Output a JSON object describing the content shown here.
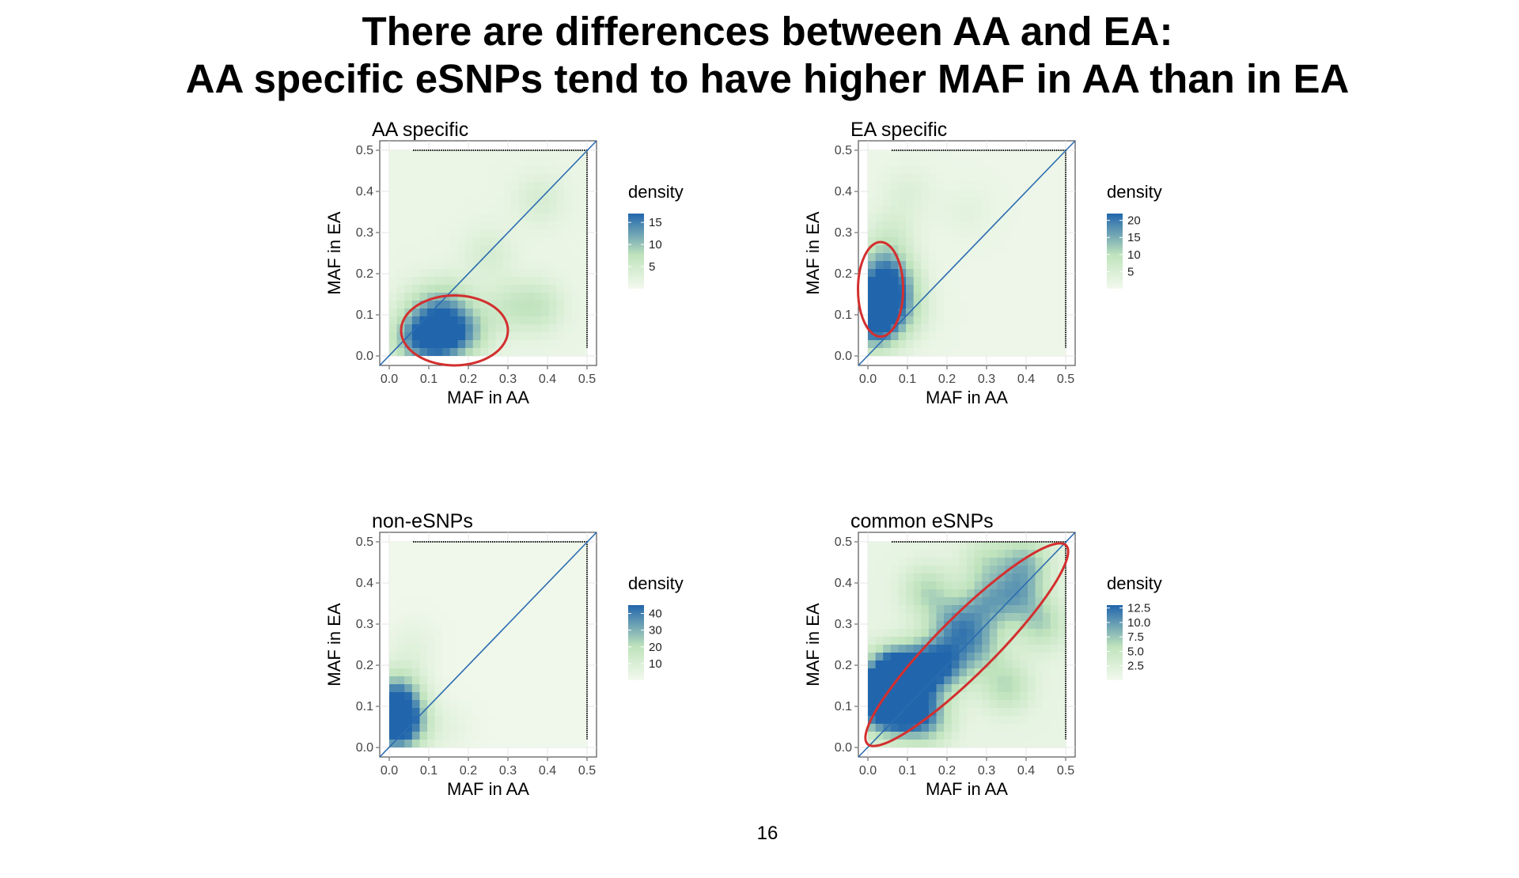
{
  "slide": {
    "title_line1": "There are differences between AA and EA:",
    "title_line2": "AA specific eSNPs tend to have higher MAF in AA than in EA",
    "page_number": "16"
  },
  "colors": {
    "low": "#f3f9ee",
    "mid": "#bfe3bc",
    "high": "#2166ac",
    "diagonal": "#2b6cb0",
    "ellipse": "#d32f2f",
    "panel_background": "#ffffff"
  },
  "chart_data": [
    {
      "type": "heatmap",
      "title": "AA specific",
      "xlabel": "MAF in AA",
      "ylabel": "MAF in EA",
      "xlim": [
        0,
        0.5
      ],
      "ylim": [
        0,
        0.5
      ],
      "x_ticks": [
        "0.0",
        "0.1",
        "0.2",
        "0.3",
        "0.4",
        "0.5"
      ],
      "y_ticks": [
        "0.0",
        "0.1",
        "0.2",
        "0.3",
        "0.4",
        "0.5"
      ],
      "grid": true,
      "legend": {
        "title": "density",
        "position": "right",
        "min": 0,
        "max": 17,
        "ticks": [
          15,
          10,
          5
        ]
      },
      "reference_line": "y = x",
      "hotspots": [
        {
          "x": 0.13,
          "y": 0.05,
          "weight": 17
        },
        {
          "x": 0.06,
          "y": 0.04,
          "weight": 9
        },
        {
          "x": 0.2,
          "y": 0.06,
          "weight": 7
        },
        {
          "x": 0.15,
          "y": 0.13,
          "weight": 6
        },
        {
          "x": 0.08,
          "y": 0.12,
          "weight": 4
        },
        {
          "x": 0.3,
          "y": 0.12,
          "weight": 4
        },
        {
          "x": 0.38,
          "y": 0.12,
          "weight": 5
        },
        {
          "x": 0.25,
          "y": 0.25,
          "weight": 3
        },
        {
          "x": 0.38,
          "y": 0.38,
          "weight": 3
        }
      ],
      "annotation": {
        "shape": "ellipse",
        "cx": 0.165,
        "cy": 0.062,
        "rx": 0.135,
        "ry": 0.085,
        "angle": 0
      }
    },
    {
      "type": "heatmap",
      "title": "EA specific",
      "xlabel": "MAF in AA",
      "ylabel": "MAF in EA",
      "xlim": [
        0,
        0.5
      ],
      "ylim": [
        0,
        0.5
      ],
      "x_ticks": [
        "0.0",
        "0.1",
        "0.2",
        "0.3",
        "0.4",
        "0.5"
      ],
      "y_ticks": [
        "0.0",
        "0.1",
        "0.2",
        "0.3",
        "0.4",
        "0.5"
      ],
      "grid": true,
      "legend": {
        "title": "density",
        "position": "right",
        "min": 0,
        "max": 22,
        "ticks": [
          20,
          15,
          10,
          5
        ]
      },
      "reference_line": "y = x",
      "hotspots": [
        {
          "x": 0.02,
          "y": 0.08,
          "weight": 22
        },
        {
          "x": 0.03,
          "y": 0.15,
          "weight": 18
        },
        {
          "x": 0.04,
          "y": 0.22,
          "weight": 10
        },
        {
          "x": 0.08,
          "y": 0.17,
          "weight": 7
        },
        {
          "x": 0.1,
          "y": 0.1,
          "weight": 5
        },
        {
          "x": 0.06,
          "y": 0.3,
          "weight": 4
        },
        {
          "x": 0.1,
          "y": 0.4,
          "weight": 3
        },
        {
          "x": 0.25,
          "y": 0.35,
          "weight": 2
        }
      ],
      "annotation": {
        "shape": "ellipse",
        "cx": 0.032,
        "cy": 0.162,
        "rx": 0.057,
        "ry": 0.115,
        "angle": 0
      }
    },
    {
      "type": "heatmap",
      "title": "non-eSNPs",
      "xlabel": "MAF in AA",
      "ylabel": "MAF in EA",
      "xlim": [
        0,
        0.5
      ],
      "ylim": [
        0,
        0.5
      ],
      "x_ticks": [
        "0.0",
        "0.1",
        "0.2",
        "0.3",
        "0.4",
        "0.5"
      ],
      "y_ticks": [
        "0.0",
        "0.1",
        "0.2",
        "0.3",
        "0.4",
        "0.5"
      ],
      "grid": true,
      "legend": {
        "title": "density",
        "position": "right",
        "min": 0,
        "max": 45,
        "ticks": [
          40,
          30,
          20,
          10
        ]
      },
      "reference_line": "y = x",
      "hotspots": [
        {
          "x": 0.012,
          "y": 0.06,
          "weight": 45
        },
        {
          "x": 0.015,
          "y": 0.1,
          "weight": 30
        },
        {
          "x": 0.03,
          "y": 0.15,
          "weight": 12
        },
        {
          "x": 0.05,
          "y": 0.04,
          "weight": 10
        },
        {
          "x": 0.06,
          "y": 0.25,
          "weight": 5
        },
        {
          "x": 0.15,
          "y": 0.05,
          "weight": 4
        }
      ],
      "annotation": null
    },
    {
      "type": "heatmap",
      "title": "common eSNPs",
      "xlabel": "MAF in AA",
      "ylabel": "MAF in EA",
      "xlim": [
        0,
        0.5
      ],
      "ylim": [
        0,
        0.5
      ],
      "x_ticks": [
        "0.0",
        "0.1",
        "0.2",
        "0.3",
        "0.4",
        "0.5"
      ],
      "y_ticks": [
        "0.0",
        "0.1",
        "0.2",
        "0.3",
        "0.4",
        "0.5"
      ],
      "grid": true,
      "legend": {
        "title": "density",
        "position": "right",
        "min": 0,
        "max": 13,
        "ticks": [
          "12.5",
          "10.0",
          "7.5",
          "5.0",
          "2.5"
        ]
      },
      "reference_line": "y = x",
      "hotspots": [
        {
          "x": 0.08,
          "y": 0.17,
          "weight": 13
        },
        {
          "x": 0.03,
          "y": 0.1,
          "weight": 11
        },
        {
          "x": 0.09,
          "y": 0.1,
          "weight": 12
        },
        {
          "x": 0.05,
          "y": 0.17,
          "weight": 9
        },
        {
          "x": 0.15,
          "y": 0.2,
          "weight": 8
        },
        {
          "x": 0.2,
          "y": 0.2,
          "weight": 7
        },
        {
          "x": 0.22,
          "y": 0.3,
          "weight": 7
        },
        {
          "x": 0.28,
          "y": 0.25,
          "weight": 6
        },
        {
          "x": 0.3,
          "y": 0.35,
          "weight": 6
        },
        {
          "x": 0.38,
          "y": 0.37,
          "weight": 6
        },
        {
          "x": 0.4,
          "y": 0.45,
          "weight": 6
        },
        {
          "x": 0.35,
          "y": 0.15,
          "weight": 5
        },
        {
          "x": 0.15,
          "y": 0.38,
          "weight": 5
        },
        {
          "x": 0.44,
          "y": 0.3,
          "weight": 5
        },
        {
          "x": 0.3,
          "y": 0.45,
          "weight": 4
        },
        {
          "x": 0.15,
          "y": 0.07,
          "weight": 7
        }
      ],
      "annotation": {
        "shape": "ellipse",
        "cx": 0.25,
        "cy": 0.25,
        "rx": 0.355,
        "ry": 0.07,
        "angle": 45
      }
    }
  ]
}
